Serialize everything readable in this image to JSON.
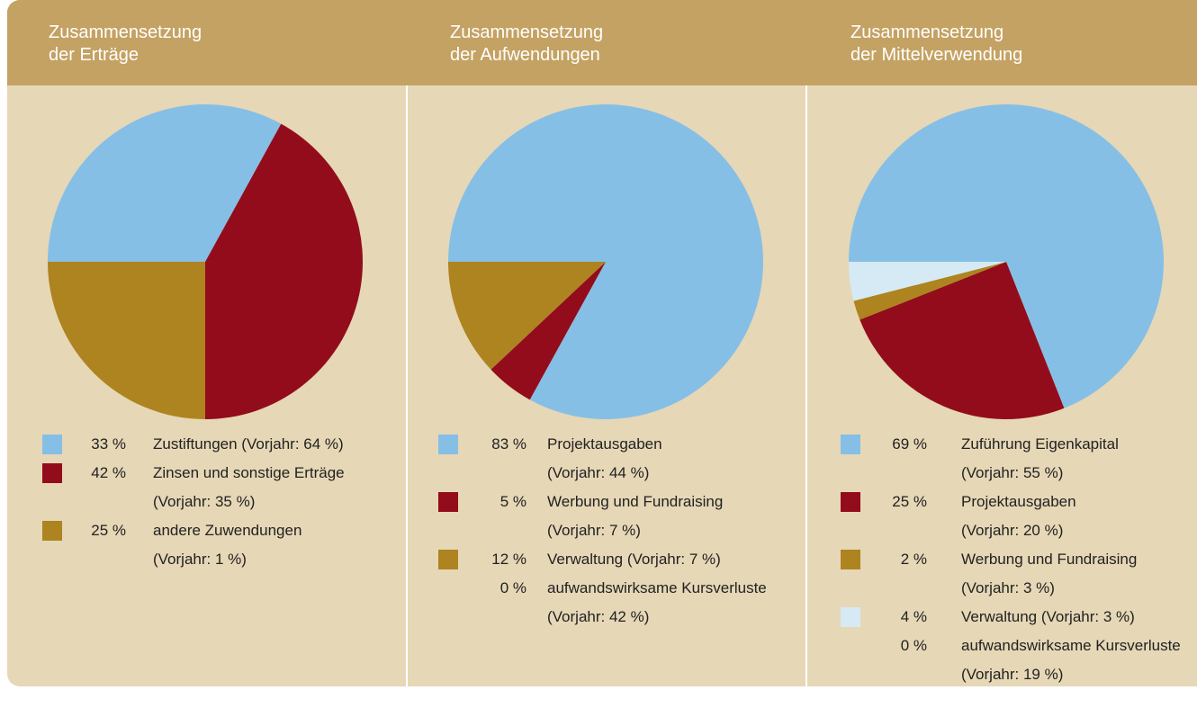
{
  "chart_data": [
    {
      "type": "pie",
      "title": [
        "Zusammensetzung",
        "der Erträge"
      ],
      "categories": [
        "Zustiftungen",
        "Zinsen und sonstige Erträge",
        "andere Zuwendungen"
      ],
      "values": [
        33,
        42,
        25
      ],
      "value_labels": [
        "33 %",
        "42 %",
        "25 %"
      ],
      "prior_labels": [
        "(Vorjahr: 64 %)",
        "(Vorjahr: 35 %)",
        "(Vorjahr: 1 %)"
      ],
      "colors": [
        "#86bfe6",
        "#930c1c",
        "#ad8420"
      ]
    },
    {
      "type": "pie",
      "title": [
        "Zusammensetzung",
        "der Aufwendungen"
      ],
      "categories": [
        "Projektausgaben",
        "Werbung und Fundraising",
        "Verwaltung",
        "aufwandswirksame Kursverluste"
      ],
      "values": [
        83,
        5,
        12,
        0
      ],
      "value_labels": [
        "83 %",
        "5 %",
        "12 %",
        "0 %"
      ],
      "prior_labels": [
        "(Vorjahr: 44 %)",
        "(Vorjahr: 7 %)",
        "(Vorjahr: 7 %)",
        "(Vorjahr: 42 %)"
      ],
      "colors": [
        "#86bfe6",
        "#930c1c",
        "#ad8420",
        null
      ]
    },
    {
      "type": "pie",
      "title": [
        "Zusammensetzung",
        "der Mittelverwendung"
      ],
      "categories": [
        "Zuführung Eigenkapital",
        "Projektausgaben",
        "Werbung und Fundraising",
        "Verwaltung",
        "aufwandswirksame Kursverluste"
      ],
      "values": [
        69,
        25,
        2,
        4,
        0
      ],
      "value_labels": [
        "69 %",
        "25 %",
        "2 %",
        "4 %",
        "0 %"
      ],
      "prior_labels": [
        "(Vorjahr: 55 %)",
        "(Vorjahr: 20 %)",
        "(Vorjahr: 3 %)",
        "(Vorjahr: 3 %)",
        "(Vorjahr: 19 %)"
      ],
      "colors": [
        "#86bfe6",
        "#930c1c",
        "#ad8420",
        "#d6eaf5",
        null
      ]
    }
  ]
}
